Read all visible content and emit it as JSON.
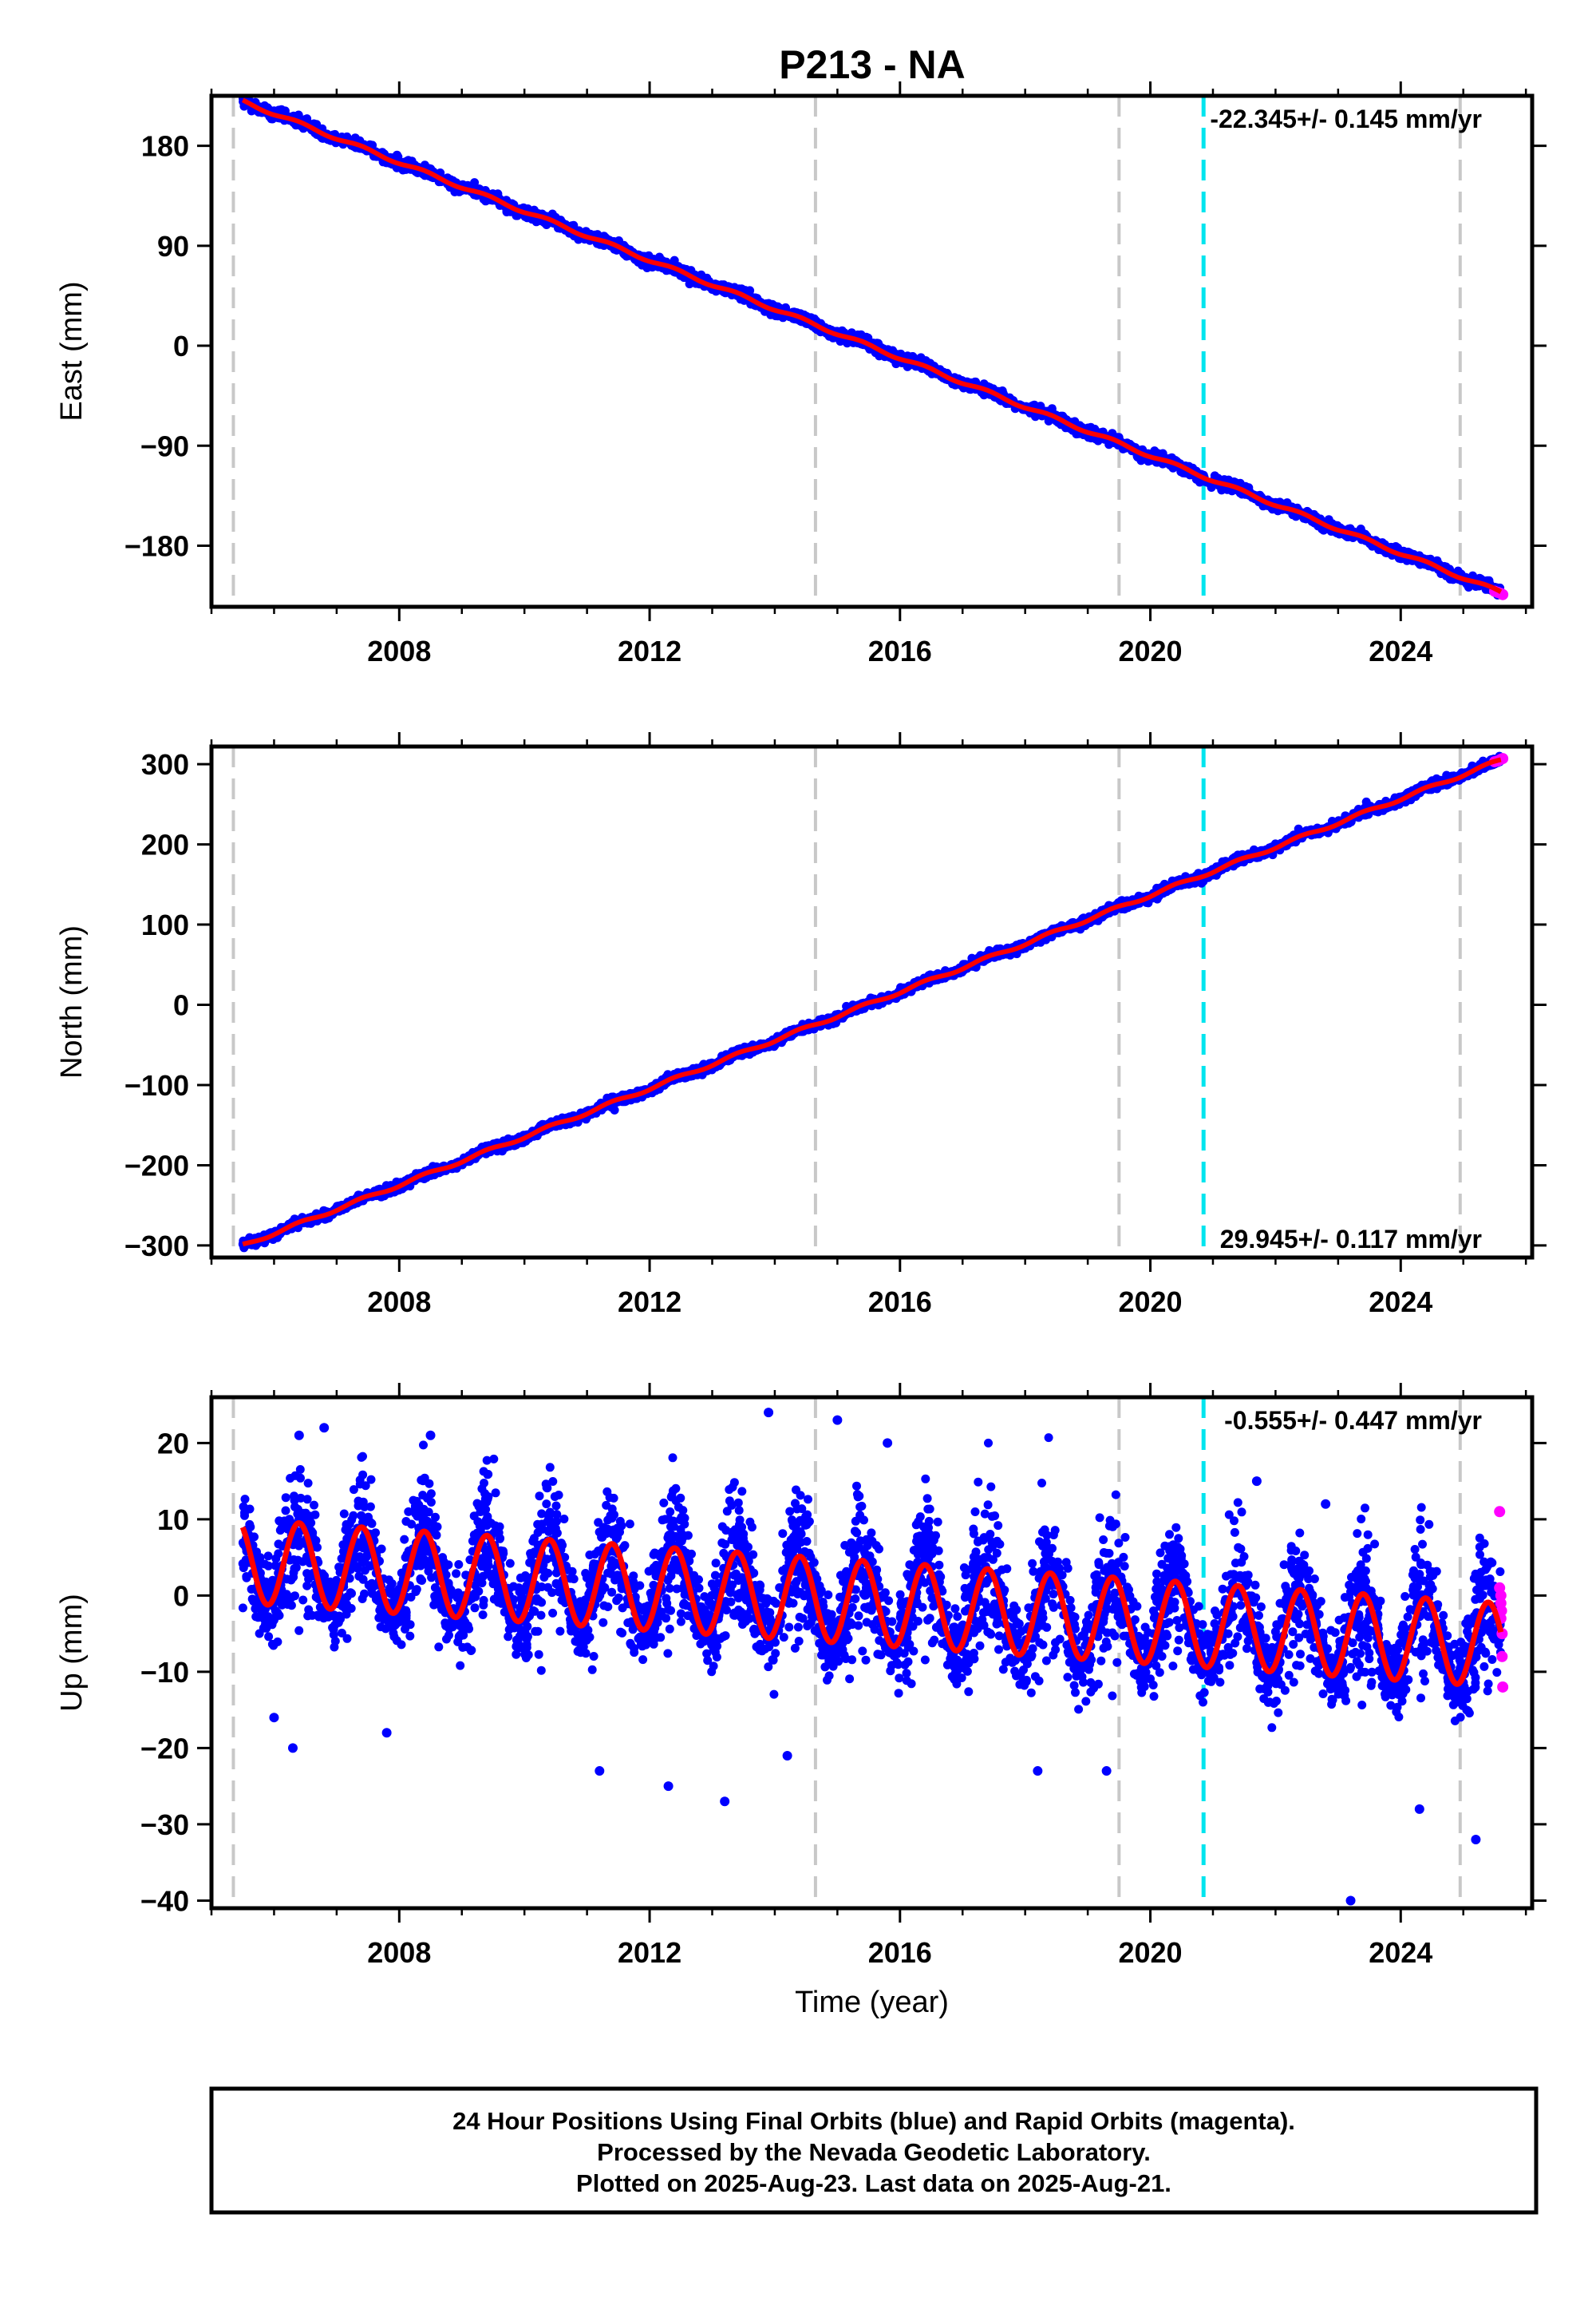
{
  "title": "P213 - NA",
  "colors": {
    "final_orbits": "#0000ff",
    "rapid_orbits": "#ff00ff",
    "model_fit": "#ff0000",
    "equipment_change": "#c8c8c8",
    "earthquake": "#00e5ee"
  },
  "chart_data": [
    {
      "type": "scatter",
      "ylabel": "East (mm)",
      "rate_label": "-22.345+/- 0.145 mm/yr",
      "rate_position": "top-right",
      "xlim": [
        2005.0,
        2026.1
      ],
      "ylim": [
        -235,
        225
      ],
      "xticks": [
        2008,
        2012,
        2016,
        2020,
        2024
      ],
      "xtick_labels": [
        "2008",
        "2012",
        "2016",
        "2020",
        "2024"
      ],
      "yticks": [
        180,
        90,
        0,
        -90,
        -180
      ],
      "ytick_labels": [
        "180",
        "90",
        "0",
        "−90",
        "−180"
      ],
      "trend": {
        "start_year": 2005.5,
        "start_value": 220,
        "end_year": 2025.6,
        "end_value": -222
      },
      "annual_amplitude_mm": 1.5,
      "scatter_mm": 2.2,
      "outliers": [],
      "rapid_points": [
        [
          2025.5,
          -221
        ],
        [
          2025.55,
          -222
        ],
        [
          2025.6,
          -223
        ],
        [
          2025.63,
          -224
        ]
      ],
      "vlines_gray": [
        2005.35,
        2014.65,
        2019.5,
        2024.95
      ],
      "vlines_cyan": [
        2020.85
      ],
      "grid": false
    },
    {
      "type": "scatter",
      "ylabel": "North (mm)",
      "rate_label": "29.945+/- 0.117 mm/yr",
      "rate_position": "bottom-right",
      "xlim": [
        2005.0,
        2026.1
      ],
      "ylim": [
        -315,
        322
      ],
      "xticks": [
        2008,
        2012,
        2016,
        2020,
        2024
      ],
      "xtick_labels": [
        "2008",
        "2012",
        "2016",
        "2020",
        "2024"
      ],
      "yticks": [
        300,
        200,
        100,
        0,
        -100,
        -200,
        -300
      ],
      "ytick_labels": [
        "300",
        "200",
        "100",
        "0",
        "−100",
        "−200",
        "−300"
      ],
      "trend": {
        "start_year": 2005.5,
        "start_value": -300,
        "end_year": 2025.6,
        "end_value": 305
      },
      "annual_amplitude_mm": 2.0,
      "scatter_mm": 2.5,
      "outliers": [],
      "rapid_points": [
        [
          2025.5,
          303
        ],
        [
          2025.55,
          304
        ],
        [
          2025.6,
          306
        ],
        [
          2025.63,
          307
        ]
      ],
      "vlines_gray": [
        2005.35,
        2014.65,
        2019.5,
        2024.95
      ],
      "vlines_cyan": [
        2020.85
      ],
      "grid": false
    },
    {
      "type": "scatter",
      "ylabel": "Up (mm)",
      "xlabel": "Time (year)",
      "rate_label": "-0.555+/- 0.447 mm/yr",
      "rate_position": "top-right",
      "xlim": [
        2005.0,
        2026.1
      ],
      "ylim": [
        -41,
        26
      ],
      "xticks": [
        2008,
        2012,
        2016,
        2020,
        2024
      ],
      "xtick_labels": [
        "2008",
        "2012",
        "2016",
        "2020",
        "2024"
      ],
      "yticks": [
        20,
        10,
        0,
        -10,
        -20,
        -30,
        -40
      ],
      "ytick_labels": [
        "20",
        "10",
        "0",
        "−10",
        "−20",
        "−30",
        "−40"
      ],
      "trend": {
        "start_year": 2005.5,
        "start_value": 4.5,
        "end_year": 2025.6,
        "end_value": -6.5
      },
      "annual_amplitude_mm": 5.5,
      "scatter_mm": 3.5,
      "outliers": [
        [
          2006.4,
          21
        ],
        [
          2006.8,
          22
        ],
        [
          2008.5,
          21
        ],
        [
          2013.9,
          24
        ],
        [
          2015.0,
          23
        ],
        [
          2015.8,
          20
        ],
        [
          2012.3,
          -25
        ],
        [
          2013.2,
          -27
        ],
        [
          2006.3,
          -20
        ],
        [
          2006.0,
          -16
        ],
        [
          2021.7,
          15
        ],
        [
          2022.8,
          12
        ],
        [
          2023.2,
          -40
        ],
        [
          2024.3,
          -28
        ],
        [
          2025.2,
          -32
        ],
        [
          2014.2,
          -21
        ],
        [
          2018.2,
          -23
        ],
        [
          2019.3,
          -23
        ],
        [
          2011.2,
          -23
        ],
        [
          2007.8,
          -18
        ]
      ],
      "rapid_points": [
        [
          2025.58,
          11
        ],
        [
          2025.58,
          1
        ],
        [
          2025.6,
          -1
        ],
        [
          2025.6,
          -3
        ],
        [
          2025.62,
          -5
        ],
        [
          2025.62,
          -8
        ],
        [
          2025.63,
          -12
        ],
        [
          2025.6,
          0
        ],
        [
          2025.61,
          -2
        ]
      ],
      "vlines_gray": [
        2005.35,
        2014.65,
        2019.5,
        2024.95
      ],
      "vlines_cyan": [
        2020.85
      ],
      "grid": false
    }
  ],
  "footer": {
    "line1": "24 Hour Positions Using Final Orbits (blue) and Rapid Orbits (magenta).",
    "line2": "Processed by the Nevada Geodetic Laboratory.",
    "line3": "Plotted on 2025-Aug-23. Last data on 2025-Aug-21."
  }
}
